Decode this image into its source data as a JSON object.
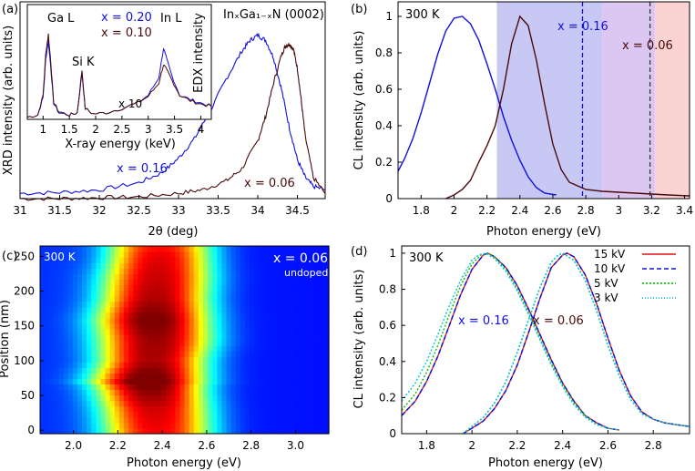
{
  "figure": {
    "panel_a": {
      "letter": "(a)",
      "main": {
        "xlabel": "2θ (deg)",
        "ylabel": "XRD intensity (arb. units)",
        "x_ticks": [
          "31",
          "31.5",
          "32",
          "32.5",
          "33",
          "33.5",
          "34",
          "34.5"
        ],
        "annotation_main": "InₓGa₁₋ₓN (0002)",
        "label_x016": "x = 0.16",
        "label_x006": "x = 0.06"
      },
      "inset": {
        "xlabel": "X-ray energy (keV)",
        "ylabel": "EDX intensity",
        "x_ticks": [
          "1",
          "1.5",
          "2",
          "2.5",
          "3",
          "3.5",
          "4"
        ],
        "label_gaL": "Ga L",
        "label_siK": "Si K",
        "label_inL": "In L",
        "label_x020": "x = 0.20",
        "label_x010": "x = 0.10",
        "label_x10": "x 10"
      }
    },
    "panel_b": {
      "letter": "(b)",
      "temp": "300 K",
      "xlabel": "Photon energy (eV)",
      "ylabel": "CL intensity (arb. units)",
      "x_ticks": [
        "1.8",
        "2",
        "2.2",
        "2.4",
        "2.6",
        "2.8",
        "3",
        "3.2",
        "3.4"
      ],
      "y_ticks": [
        "0",
        "0.2",
        "0.4",
        "0.6",
        "0.8",
        "1"
      ],
      "label_x016": "x = 0.16",
      "label_x006": "x = 0.06"
    },
    "panel_c": {
      "letter": "(c)",
      "temp": "300 K",
      "label_x": "x = 0.06",
      "label_doping": "undoped",
      "xlabel": "Photon energy (eV)",
      "ylabel": "Position (nm)",
      "x_ticks": [
        "2.0",
        "2.2",
        "2.4",
        "2.6",
        "2.8",
        "3.0"
      ],
      "y_ticks": [
        "0",
        "50",
        "100",
        "150",
        "200",
        "250"
      ]
    },
    "panel_d": {
      "letter": "(d)",
      "temp": "300 K",
      "xlabel": "Photon energy (eV)",
      "ylabel": "CL intensity (arb. units)",
      "x_ticks": [
        "1.8",
        "2",
        "2.2",
        "2.4",
        "2.6",
        "2.8"
      ],
      "y_ticks": [
        "0",
        "0.2",
        "0.4",
        "0.6",
        "0.8",
        "1"
      ],
      "label_x016": "x = 0.16",
      "label_x006": "x = 0.06",
      "legend": [
        "15 kV",
        "10 kV",
        "5 kV",
        "3 kV"
      ]
    }
  },
  "chart_data": [
    {
      "panel": "a",
      "type": "line",
      "xlabel": "2θ (deg)",
      "ylabel": "XRD intensity (arb. units)",
      "xlim": [
        31,
        34.85
      ],
      "ylim": [
        0,
        1.12
      ],
      "series": [
        {
          "name": "x = 0.16",
          "color": "#1010e0",
          "x": [
            31.0,
            31.5,
            32.0,
            32.5,
            32.8,
            33.0,
            33.2,
            33.4,
            33.6,
            33.8,
            33.9,
            34.0,
            34.1,
            34.2,
            34.3,
            34.4,
            34.5,
            34.6,
            34.7,
            34.85
          ],
          "y": [
            0.03,
            0.035,
            0.05,
            0.09,
            0.15,
            0.23,
            0.34,
            0.5,
            0.68,
            0.84,
            0.9,
            0.93,
            0.9,
            0.8,
            0.62,
            0.4,
            0.22,
            0.12,
            0.07,
            0.05
          ]
        },
        {
          "name": "x = 0.06",
          "color": "#4a0a0a",
          "x": [
            31.0,
            31.5,
            32.0,
            32.5,
            33.0,
            33.3,
            33.6,
            33.8,
            34.0,
            34.1,
            34.2,
            34.3,
            34.35,
            34.4,
            34.45,
            34.5,
            34.55,
            34.6,
            34.7,
            34.85
          ],
          "y": [
            0.0,
            0.0,
            0.005,
            0.01,
            0.03,
            0.05,
            0.1,
            0.17,
            0.33,
            0.47,
            0.66,
            0.82,
            0.87,
            0.88,
            0.85,
            0.74,
            0.55,
            0.35,
            0.12,
            0.03
          ]
        }
      ]
    },
    {
      "panel": "a-inset",
      "type": "line",
      "xlabel": "X-ray energy (keV)",
      "ylabel": "EDX intensity",
      "xlim": [
        0.7,
        4.2
      ],
      "ylim": [
        0,
        1.05
      ],
      "series": [
        {
          "name": "x = 0.20",
          "color": "#1010e0",
          "x": [
            0.7,
            0.9,
            1.0,
            1.05,
            1.1,
            1.15,
            1.2,
            1.3,
            1.5,
            1.65,
            1.74,
            1.8,
            1.95,
            2.2,
            2.5,
            2.8,
            3.0,
            3.2,
            3.29,
            3.35,
            3.45,
            3.6,
            3.8,
            4.0,
            4.2
          ],
          "y": [
            0.02,
            0.04,
            0.2,
            0.55,
            0.72,
            0.45,
            0.15,
            0.06,
            0.04,
            0.06,
            0.42,
            0.1,
            0.05,
            0.06,
            0.1,
            0.15,
            0.22,
            0.38,
            0.65,
            0.55,
            0.4,
            0.22,
            0.18,
            0.15,
            0.12
          ]
        },
        {
          "name": "x = 0.10",
          "color": "#4a0a0a",
          "x": [
            0.7,
            0.9,
            1.0,
            1.05,
            1.1,
            1.15,
            1.2,
            1.3,
            1.5,
            1.65,
            1.74,
            1.8,
            1.95,
            2.2,
            2.5,
            2.8,
            3.0,
            3.2,
            3.29,
            3.35,
            3.45,
            3.6,
            3.8,
            4.0,
            4.2
          ],
          "y": [
            0.02,
            0.04,
            0.22,
            0.6,
            0.78,
            0.5,
            0.16,
            0.07,
            0.04,
            0.06,
            0.45,
            0.1,
            0.05,
            0.06,
            0.1,
            0.15,
            0.21,
            0.33,
            0.5,
            0.45,
            0.36,
            0.22,
            0.17,
            0.14,
            0.12
          ]
        }
      ]
    },
    {
      "panel": "b",
      "type": "line",
      "xlabel": "Photon energy (eV)",
      "ylabel": "CL intensity (arb. units)",
      "xlim": [
        1.66,
        3.43
      ],
      "ylim": [
        0,
        1.08
      ],
      "shaded_bands": [
        {
          "from": 2.26,
          "to": 2.9,
          "color": "#c8c8f5"
        },
        {
          "from": 2.9,
          "to": 3.22,
          "color": "#dcc6f2"
        },
        {
          "from": 3.22,
          "to": 3.43,
          "color": "#fbd3d3"
        }
      ],
      "vlines": [
        {
          "x": 2.78,
          "color": "#1010e0",
          "label": "x = 0.16"
        },
        {
          "x": 3.19,
          "color": "#333333",
          "label": "x = 0.06"
        }
      ],
      "series": [
        {
          "name": "x = 0.16",
          "color": "#1010e0",
          "x": [
            1.66,
            1.7,
            1.75,
            1.8,
            1.85,
            1.9,
            1.95,
            2.0,
            2.05,
            2.1,
            2.15,
            2.2,
            2.25,
            2.3,
            2.35,
            2.4,
            2.45,
            2.5,
            2.55,
            2.62
          ],
          "y": [
            0.15,
            0.22,
            0.33,
            0.47,
            0.63,
            0.79,
            0.92,
            0.99,
            1.0,
            0.96,
            0.87,
            0.74,
            0.6,
            0.45,
            0.32,
            0.21,
            0.12,
            0.06,
            0.03,
            0.02
          ]
        },
        {
          "name": "x = 0.06",
          "color": "#4a0a0a",
          "x": [
            1.95,
            2.0,
            2.05,
            2.1,
            2.15,
            2.2,
            2.25,
            2.3,
            2.35,
            2.4,
            2.45,
            2.5,
            2.55,
            2.6,
            2.65,
            2.7,
            2.8,
            2.9,
            3.0,
            3.1,
            3.2,
            3.3,
            3.43
          ],
          "y": [
            0.0,
            0.02,
            0.05,
            0.1,
            0.2,
            0.29,
            0.4,
            0.6,
            0.85,
            1.0,
            0.95,
            0.76,
            0.52,
            0.3,
            0.16,
            0.09,
            0.05,
            0.04,
            0.035,
            0.03,
            0.025,
            0.02,
            0.015
          ]
        }
      ]
    },
    {
      "panel": "c",
      "type": "heatmap",
      "xlabel": "Photon energy (eV)",
      "ylabel": "Position (nm)",
      "xlim": [
        1.85,
        3.15
      ],
      "ylim": [
        -5,
        265
      ],
      "peak_energy_by_position": {
        "position": [
          0,
          30,
          60,
          70,
          100,
          130,
          160,
          190,
          220,
          250,
          262
        ],
        "peak": [
          2.38,
          2.37,
          2.35,
          2.34,
          2.36,
          2.37,
          2.36,
          2.37,
          2.38,
          2.39,
          2.39
        ],
        "width": [
          0.19,
          0.19,
          0.19,
          0.2,
          0.19,
          0.2,
          0.2,
          0.19,
          0.19,
          0.18,
          0.18
        ],
        "intensity": [
          0.82,
          0.86,
          0.95,
          1.0,
          0.9,
          0.92,
          0.97,
          0.9,
          0.87,
          0.84,
          0.8
        ]
      }
    },
    {
      "panel": "d",
      "type": "line",
      "xlabel": "Photon energy (eV)",
      "ylabel": "CL intensity (arb. units)",
      "xlim": [
        1.69,
        2.96
      ],
      "ylim": [
        0,
        1.04
      ],
      "series": [
        {
          "name": "15 kV",
          "color": "#e01010",
          "style": "solid",
          "group": "x = 0.16",
          "x": [
            1.69,
            1.75,
            1.8,
            1.85,
            1.9,
            1.95,
            2.0,
            2.05,
            2.07,
            2.1,
            2.15,
            2.2,
            2.25,
            2.3,
            2.35,
            2.4,
            2.45,
            2.5,
            2.55,
            2.6,
            2.65
          ],
          "y": [
            0.1,
            0.18,
            0.29,
            0.43,
            0.6,
            0.77,
            0.91,
            0.99,
            1.0,
            0.98,
            0.92,
            0.82,
            0.69,
            0.55,
            0.41,
            0.28,
            0.18,
            0.1,
            0.06,
            0.03,
            0.02
          ]
        },
        {
          "name": "15 kV",
          "color": "#e01010",
          "style": "solid",
          "group": "x = 0.06",
          "x": [
            1.96,
            2.0,
            2.05,
            2.1,
            2.15,
            2.2,
            2.25,
            2.3,
            2.35,
            2.4,
            2.42,
            2.45,
            2.5,
            2.55,
            2.6,
            2.65,
            2.7,
            2.75,
            2.8,
            2.85,
            2.9,
            2.96
          ],
          "y": [
            0.0,
            0.03,
            0.07,
            0.14,
            0.24,
            0.38,
            0.56,
            0.75,
            0.92,
            0.99,
            1.0,
            0.98,
            0.88,
            0.72,
            0.53,
            0.35,
            0.21,
            0.12,
            0.08,
            0.06,
            0.05,
            0.04
          ]
        },
        {
          "name": "10 kV",
          "color": "#1010e0",
          "style": "dashed",
          "group": "x = 0.16",
          "x": [
            1.69,
            1.75,
            1.8,
            1.85,
            1.9,
            1.95,
            2.0,
            2.05,
            2.07,
            2.1,
            2.15,
            2.2,
            2.25,
            2.3,
            2.35,
            2.4,
            2.45,
            2.5,
            2.55,
            2.6,
            2.65
          ],
          "y": [
            0.1,
            0.18,
            0.29,
            0.43,
            0.6,
            0.77,
            0.91,
            0.99,
            1.0,
            0.98,
            0.92,
            0.82,
            0.69,
            0.55,
            0.41,
            0.28,
            0.18,
            0.1,
            0.06,
            0.03,
            0.02
          ]
        },
        {
          "name": "10 kV",
          "color": "#1010e0",
          "style": "dashed",
          "group": "x = 0.06",
          "x": [
            1.96,
            2.0,
            2.05,
            2.1,
            2.15,
            2.2,
            2.25,
            2.3,
            2.35,
            2.4,
            2.42,
            2.45,
            2.5,
            2.55,
            2.6,
            2.65,
            2.7,
            2.75,
            2.8,
            2.85,
            2.9,
            2.96
          ],
          "y": [
            0.0,
            0.03,
            0.07,
            0.14,
            0.24,
            0.38,
            0.56,
            0.75,
            0.92,
            0.99,
            1.0,
            0.98,
            0.88,
            0.72,
            0.53,
            0.35,
            0.21,
            0.12,
            0.08,
            0.06,
            0.05,
            0.04
          ]
        },
        {
          "name": "5 kV",
          "color": "#10c010",
          "style": "dotted",
          "group": "x = 0.16",
          "x": [
            1.69,
            1.75,
            1.8,
            1.85,
            1.9,
            1.95,
            2.0,
            2.04,
            2.07,
            2.1,
            2.15,
            2.2,
            2.25,
            2.3,
            2.35,
            2.4,
            2.45,
            2.5,
            2.55,
            2.6,
            2.65
          ],
          "y": [
            0.13,
            0.22,
            0.34,
            0.49,
            0.66,
            0.82,
            0.94,
            0.99,
            1.0,
            0.98,
            0.91,
            0.8,
            0.67,
            0.53,
            0.39,
            0.27,
            0.17,
            0.1,
            0.05,
            0.03,
            0.02
          ]
        },
        {
          "name": "5 kV",
          "color": "#10c010",
          "style": "dotted",
          "group": "x = 0.06",
          "x": [
            1.96,
            2.0,
            2.05,
            2.1,
            2.15,
            2.2,
            2.25,
            2.3,
            2.35,
            2.38,
            2.4,
            2.45,
            2.5,
            2.55,
            2.6,
            2.65,
            2.7,
            2.75,
            2.8,
            2.85,
            2.9,
            2.96
          ],
          "y": [
            0.0,
            0.04,
            0.09,
            0.17,
            0.29,
            0.45,
            0.63,
            0.81,
            0.95,
            0.99,
            1.0,
            0.96,
            0.85,
            0.68,
            0.49,
            0.32,
            0.19,
            0.11,
            0.08,
            0.06,
            0.05,
            0.04
          ]
        },
        {
          "name": "3 kV",
          "color": "#10c8d8",
          "style": "dotted",
          "group": "x = 0.16",
          "x": [
            1.69,
            1.75,
            1.8,
            1.85,
            1.9,
            1.95,
            2.0,
            2.03,
            2.06,
            2.1,
            2.15,
            2.2,
            2.25,
            2.3,
            2.35,
            2.4,
            2.45,
            2.5,
            2.55,
            2.6,
            2.65
          ],
          "y": [
            0.18,
            0.28,
            0.4,
            0.55,
            0.71,
            0.85,
            0.96,
            0.99,
            1.0,
            0.97,
            0.9,
            0.79,
            0.66,
            0.52,
            0.38,
            0.26,
            0.16,
            0.09,
            0.05,
            0.03,
            0.02
          ]
        },
        {
          "name": "3 kV",
          "color": "#10c8d8",
          "style": "dotted",
          "group": "x = 0.06",
          "x": [
            1.96,
            2.0,
            2.05,
            2.1,
            2.15,
            2.2,
            2.25,
            2.3,
            2.35,
            2.38,
            2.4,
            2.45,
            2.5,
            2.55,
            2.6,
            2.65,
            2.7,
            2.75,
            2.8,
            2.85,
            2.9,
            2.96
          ],
          "y": [
            0.0,
            0.04,
            0.09,
            0.17,
            0.29,
            0.45,
            0.63,
            0.81,
            0.95,
            0.99,
            1.0,
            0.96,
            0.85,
            0.68,
            0.49,
            0.32,
            0.19,
            0.11,
            0.08,
            0.06,
            0.05,
            0.04
          ]
        }
      ]
    }
  ]
}
